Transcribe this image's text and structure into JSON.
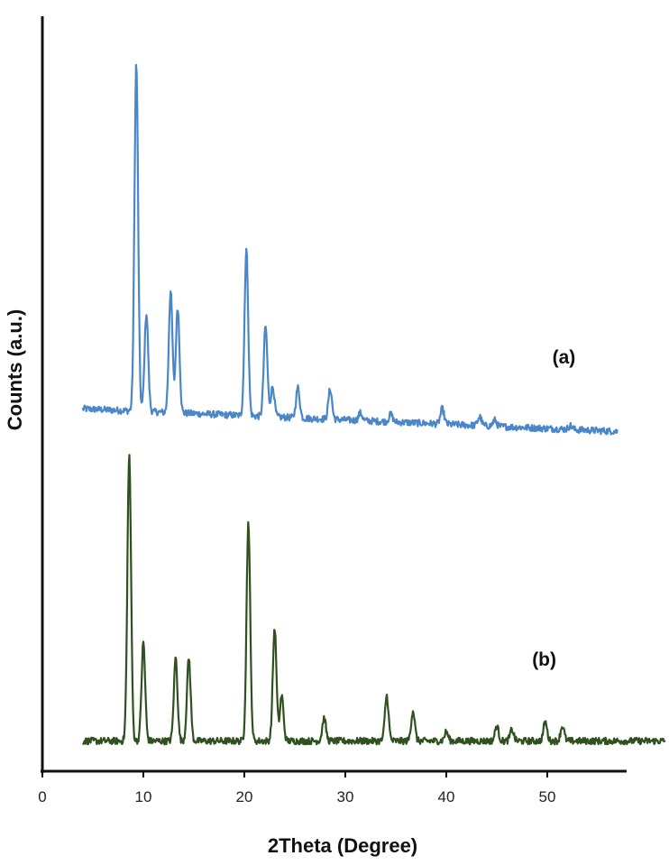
{
  "chart_data": {
    "type": "line",
    "title": "",
    "xlabel": "2Theta (Degree)",
    "ylabel": "Counts (a.u.)",
    "xlim": [
      0,
      58
    ],
    "ylim": [
      0,
      100
    ],
    "x_ticks": [
      0,
      10,
      20,
      30,
      40,
      50
    ],
    "y_ticks_shown": false,
    "grid": false,
    "series": [
      {
        "label": "(a)",
        "color": "#4a86c8",
        "baseline": 48,
        "baseline_end": 45,
        "x_range": [
          4,
          57
        ],
        "peaks": [
          {
            "x": 9.3,
            "h": 46
          },
          {
            "x": 10.3,
            "h": 13
          },
          {
            "x": 12.7,
            "h": 16
          },
          {
            "x": 13.4,
            "h": 14
          },
          {
            "x": 20.2,
            "h": 22
          },
          {
            "x": 22.1,
            "h": 12
          },
          {
            "x": 22.8,
            "h": 4
          },
          {
            "x": 25.3,
            "h": 4
          },
          {
            "x": 28.5,
            "h": 4
          },
          {
            "x": 31.5,
            "h": 1
          },
          {
            "x": 34.5,
            "h": 1
          },
          {
            "x": 39.6,
            "h": 2
          },
          {
            "x": 43.3,
            "h": 1.2
          },
          {
            "x": 44.8,
            "h": 0.8
          },
          {
            "x": 52.3,
            "h": 0.5
          }
        ]
      },
      {
        "label": "(b)",
        "color": "#2f5120",
        "baseline": 4,
        "baseline_end": 4,
        "x_range": [
          4,
          62
        ],
        "peaks": [
          {
            "x": 8.6,
            "h": 38
          },
          {
            "x": 10.0,
            "h": 13
          },
          {
            "x": 13.2,
            "h": 11
          },
          {
            "x": 14.5,
            "h": 11
          },
          {
            "x": 20.4,
            "h": 29
          },
          {
            "x": 23.0,
            "h": 15
          },
          {
            "x": 23.7,
            "h": 6
          },
          {
            "x": 27.9,
            "h": 3
          },
          {
            "x": 34.1,
            "h": 6
          },
          {
            "x": 36.7,
            "h": 4
          },
          {
            "x": 40.0,
            "h": 1.2
          },
          {
            "x": 45.0,
            "h": 2
          },
          {
            "x": 46.5,
            "h": 1.5
          },
          {
            "x": 49.8,
            "h": 2.5
          },
          {
            "x": 51.5,
            "h": 2
          }
        ]
      }
    ]
  }
}
